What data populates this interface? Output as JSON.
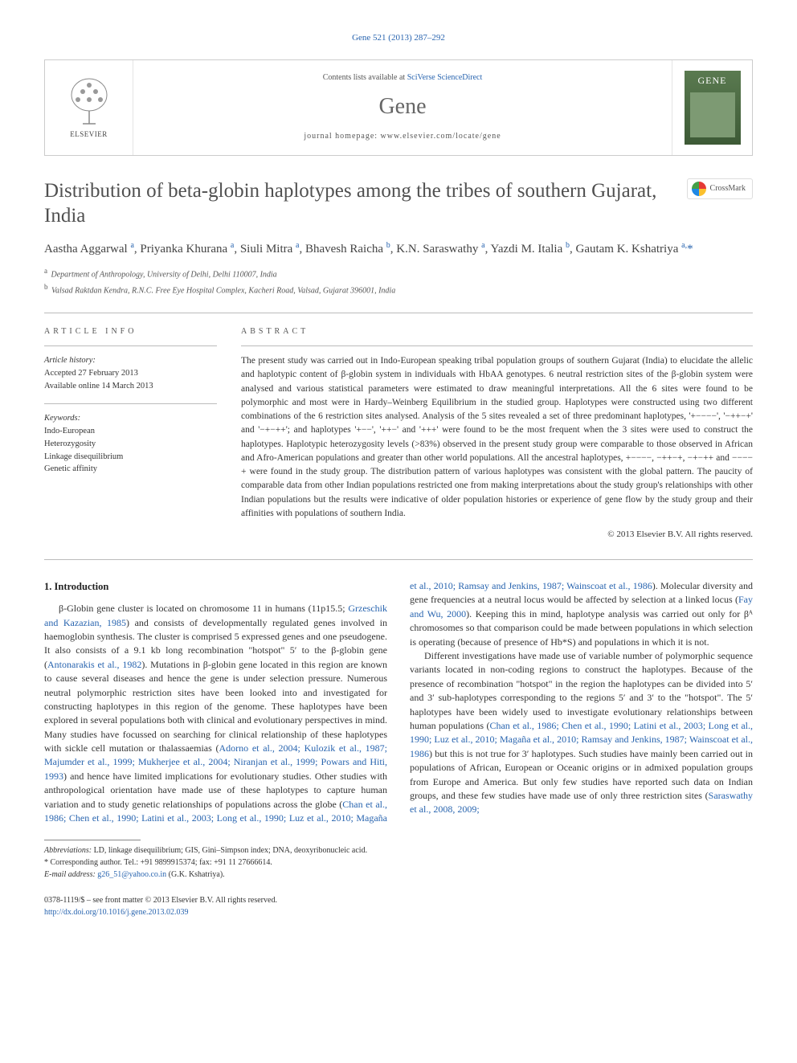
{
  "top_link": "Gene 521 (2013) 287–292",
  "header": {
    "contents_prefix": "Contents lists available at ",
    "contents_link": "SciVerse ScienceDirect",
    "journal": "Gene",
    "homepage": "journal homepage: www.elsevier.com/locate/gene",
    "publisher": "ELSEVIER",
    "cover_label": "GENE"
  },
  "title": "Distribution of beta-globin haplotypes among the tribes of southern Gujarat, India",
  "crossmark": "CrossMark",
  "authors_html": "Aastha Aggarwal <sup>a</sup>, Priyanka Khurana <sup>a</sup>, Siuli Mitra <sup>a</sup>, Bhavesh Raicha <sup>b</sup>, K.N. Saraswathy <sup>a</sup>, Yazdi M. Italia <sup>b</sup>, Gautam K. Kshatriya <sup>a,</sup><span class='star'>*</span>",
  "affiliations": {
    "a": "Department of Anthropology, University of Delhi, Delhi 110007, India",
    "b": "Valsad Raktdan Kendra, R.N.C. Free Eye Hospital Complex, Kacheri Road, Valsad, Gujarat 396001, India"
  },
  "article_info": {
    "label": "ARTICLE INFO",
    "history_label": "Article history:",
    "accepted": "Accepted 27 February 2013",
    "online": "Available online 14 March 2013",
    "keywords_label": "Keywords:",
    "keywords": [
      "Indo-European",
      "Heterozygosity",
      "Linkage disequilibrium",
      "Genetic affinity"
    ]
  },
  "abstract": {
    "label": "ABSTRACT",
    "text": "The present study was carried out in Indo-European speaking tribal population groups of southern Gujarat (India) to elucidate the allelic and haplotypic content of β-globin system in individuals with HbAA genotypes. 6 neutral restriction sites of the β-globin system were analysed and various statistical parameters were estimated to draw meaningful interpretations. All the 6 sites were found to be polymorphic and most were in Hardy–Weinberg Equilibrium in the studied group. Haplotypes were constructed using two different combinations of the 6 restriction sites analysed. Analysis of the 5 sites revealed a set of three predominant haplotypes, '+−−−−', '−++−+' and '−+−++'; and haplotypes '+−−', '++−' and '+++' were found to be the most frequent when the 3 sites were used to construct the haplotypes. Haplotypic heterozygosity levels (>83%) observed in the present study group were comparable to those observed in African and Afro-American populations and greater than other world populations. All the ancestral haplotypes, +−−−−, −++−+, −+−++ and −−−−+ were found in the study group. The distribution pattern of various haplotypes was consistent with the global pattern. The paucity of comparable data from other Indian populations restricted one from making interpretations about the study group's relationships with other Indian populations but the results were indicative of older population histories or experience of gene flow by the study group and their affinities with populations of southern India.",
    "copyright": "© 2013 Elsevier B.V. All rights reserved."
  },
  "intro": {
    "heading": "1. Introduction",
    "p1a": "β-Globin gene cluster is located on chromosome 11 in humans (11p15.5; ",
    "p1_ref1": "Grzeschik and Kazazian, 1985",
    "p1b": ") and consists of developmentally regulated genes involved in haemoglobin synthesis. The cluster is comprised 5 expressed genes and one pseudogene. It also consists of a 9.1 kb long recombination \"hotspot\" 5′ to the β-globin gene (",
    "p1_ref2": "Antonarakis et al., 1982",
    "p1c": "). Mutations in β-globin gene located in this region are known to cause several diseases and hence the gene is under selection pressure. Numerous neutral polymorphic restriction sites have been looked into and investigated for constructing haplotypes in this region of the genome. These haplotypes have been explored in several populations both with clinical and evolutionary perspectives in mind. Many studies have focussed on searching for clinical relationship of these haplotypes with sickle cell mutation or thalassaemias (",
    "p1_ref3": "Adorno et al., 2004; Kulozik et al., 1987; Majumder et al., 1999; Mukherjee et al., 2004; Niranjan et al., 1999; Powars and Hiti, 1993",
    "p1d": ") and hence have limited implications for evolutionary studies. Other studies with anthropological orientation ",
    "p2a": "have made use of these haplotypes to capture human variation and to study genetic relationships of populations across the globe (",
    "p2_ref1": "Chan et al., 1986; Chen et al., 1990; Latini et al., 2003; Long et al., 1990; Luz et al., 2010; Magaña et al., 2010; Ramsay and Jenkins, 1987; Wainscoat et al., 1986",
    "p2b": "). Molecular diversity and gene frequencies at a neutral locus would be affected by selection at a linked locus (",
    "p2_ref2": "Fay and Wu, 2000",
    "p2c": "). Keeping this in mind, haplotype analysis was carried out only for βᴬ chromosomes so that comparison could be made between populations in which selection is operating (because of presence of Hb*S) and populations in which it is not.",
    "p3a": "Different investigations have made use of variable number of polymorphic sequence variants located in non-coding regions to construct the haplotypes. Because of the presence of recombination \"hotspot\" in the region the haplotypes can be divided into 5′ and 3′ sub-haplotypes corresponding to the regions 5′ and 3′ to the \"hotspot\". The 5′ haplotypes have been widely used to investigate evolutionary relationships between human populations (",
    "p3_ref1": "Chan et al., 1986; Chen et al., 1990; Latini et al., 2003; Long et al., 1990; Luz et al., 2010; Magaña et al., 2010; Ramsay and Jenkins, 1987; Wainscoat et al., 1986",
    "p3b": ") but this is not true for 3′ haplotypes. Such studies have mainly been carried out in populations of African, European or Oceanic origins or in admixed population groups from Europe and America. But only few studies have reported such data on Indian groups, and these few studies have made use of only three restriction sites (",
    "p3_ref2": "Saraswathy et al., 2008, 2009;",
    "p3c": ""
  },
  "footnotes": {
    "abbrev_label": "Abbreviations:",
    "abbrev": " LD, linkage disequilibrium; GIS, Gini–Simpson index; DNA, deoxyribonucleic acid.",
    "corr_label": "* Corresponding author. Tel.: +91 9899915374; fax: +91 11 27666614.",
    "email_label": "E-mail address: ",
    "email": "g26_51@yahoo.co.in",
    "email_suffix": " (G.K. Kshatriya)."
  },
  "bottom": {
    "issn": "0378-1119/$ – see front matter © 2013 Elsevier B.V. All rights reserved.",
    "doi": "http://dx.doi.org/10.1016/j.gene.2013.02.039"
  },
  "colors": {
    "link": "#2864af",
    "text": "#333333",
    "title_gray": "#505050",
    "journal_gray": "#666666",
    "cover_green_top": "#5a7a50",
    "cover_green_bottom": "#3d5a36"
  }
}
